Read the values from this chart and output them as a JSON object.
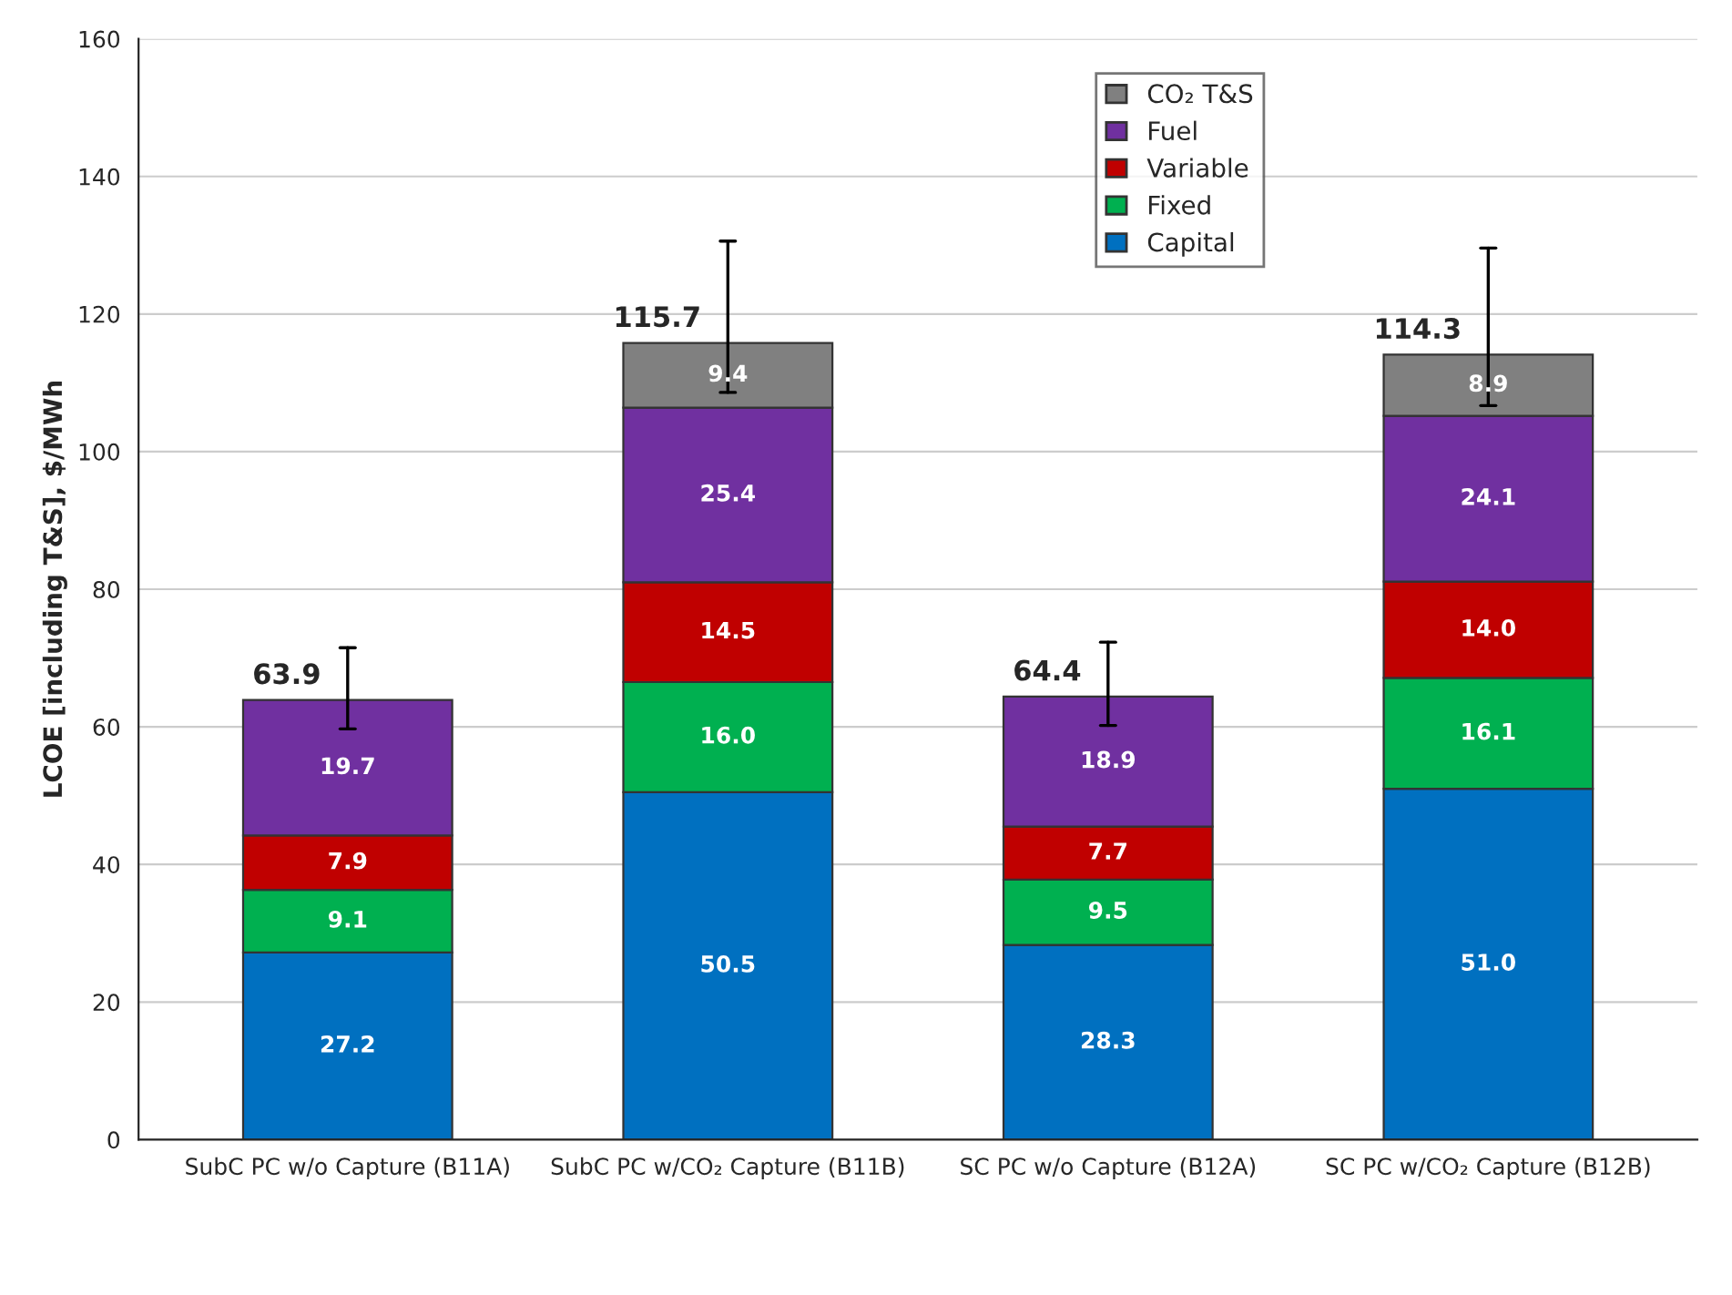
{
  "chart_data": {
    "type": "bar",
    "stacked": true,
    "ylabel": "LCOE [including T&S], $/MWh",
    "categories": [
      "SubC PC w/o Capture (B11A)",
      "SubC PC w/CO₂ Capture (B11B)",
      "SC PC w/o Capture (B12A)",
      "SC PC w/CO₂ Capture (B12B)"
    ],
    "series": [
      {
        "name": "Capital",
        "color": "#0070c0",
        "values": [
          27.2,
          50.5,
          28.3,
          51.0
        ],
        "value_labels": [
          "27.2",
          "50.5",
          "28.3",
          "51.0"
        ]
      },
      {
        "name": "Fixed",
        "color": "#00b050",
        "values": [
          9.1,
          16.0,
          9.5,
          16.1
        ],
        "value_labels": [
          "9.1",
          "16.0",
          "9.5",
          "16.1"
        ]
      },
      {
        "name": "Variable",
        "color": "#c00000",
        "values": [
          7.9,
          14.5,
          7.7,
          14.0
        ],
        "value_labels": [
          "7.9",
          "14.5",
          "7.7",
          "14.0"
        ]
      },
      {
        "name": "Fuel",
        "color": "#7030a0",
        "values": [
          19.7,
          25.4,
          18.9,
          24.1
        ],
        "value_labels": [
          "19.7",
          "25.4",
          "18.9",
          "24.1"
        ],
        "errors": [
          [
            59.7,
            71.5
          ],
          null,
          [
            60.2,
            72.3
          ],
          null
        ]
      },
      {
        "name": "CO₂ T&S",
        "color": "#808080",
        "values": [
          null,
          9.4,
          null,
          8.9
        ],
        "value_labels": [
          null,
          "9.4",
          null,
          "8.9"
        ],
        "errors": [
          null,
          [
            108.6,
            130.6
          ],
          null,
          [
            106.7,
            129.6
          ]
        ]
      }
    ],
    "totals": [
      "63.9",
      "115.7",
      "64.4",
      "114.3"
    ],
    "ylim": [
      0,
      160
    ],
    "yticks": [
      0,
      20,
      40,
      60,
      80,
      100,
      120,
      140,
      160
    ],
    "grid": "y",
    "legend": "top right"
  }
}
